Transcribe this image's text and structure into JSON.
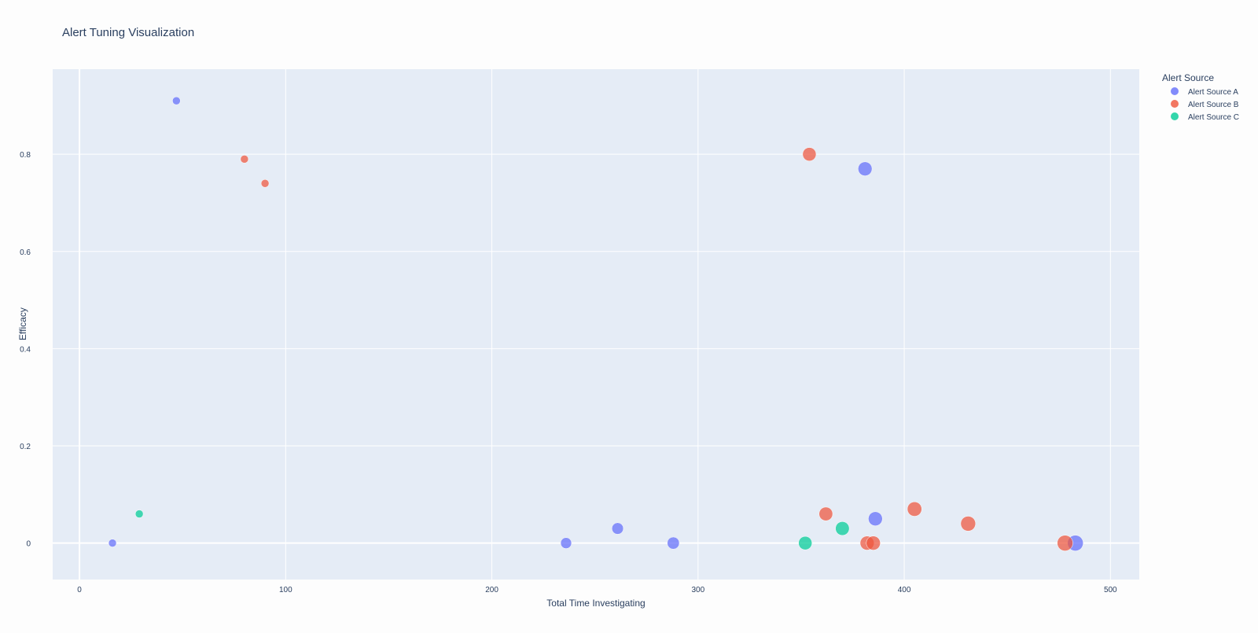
{
  "chart_data": {
    "type": "scatter",
    "title": "Alert Tuning Visualization",
    "xlabel": "Total Time Investigating",
    "ylabel": "Efficacy",
    "xlim": [
      -13,
      514
    ],
    "ylim": [
      -0.075,
      0.975
    ],
    "x_ticks": [
      0,
      100,
      200,
      300,
      400,
      500
    ],
    "x_tick_labels": [
      "0",
      "100",
      "200",
      "300",
      "400",
      "500"
    ],
    "y_ticks": [
      0,
      0.2,
      0.4,
      0.6,
      0.8
    ],
    "y_tick_labels": [
      "0",
      "0.2",
      "0.4",
      "0.6",
      "0.8"
    ],
    "grid": true,
    "legend": {
      "title": "Alert Source",
      "placement": "right-top"
    },
    "marker_size_encodes": "Total Time Investigating",
    "series": [
      {
        "name": "Alert Source A",
        "color": "#636efa",
        "points": [
          {
            "x": 16,
            "y": 0.0
          },
          {
            "x": 47,
            "y": 0.91
          },
          {
            "x": 236,
            "y": 0.0
          },
          {
            "x": 261,
            "y": 0.03
          },
          {
            "x": 288,
            "y": 0.0
          },
          {
            "x": 381,
            "y": 0.77
          },
          {
            "x": 386,
            "y": 0.05
          },
          {
            "x": 483,
            "y": 0.0
          }
        ]
      },
      {
        "name": "Alert Source B",
        "color": "#EF553B",
        "points": [
          {
            "x": 80,
            "y": 0.79
          },
          {
            "x": 90,
            "y": 0.74
          },
          {
            "x": 354,
            "y": 0.8
          },
          {
            "x": 362,
            "y": 0.06
          },
          {
            "x": 382,
            "y": 0.0
          },
          {
            "x": 385,
            "y": 0.0
          },
          {
            "x": 405,
            "y": 0.07
          },
          {
            "x": 431,
            "y": 0.04
          },
          {
            "x": 478,
            "y": 0.0
          }
        ]
      },
      {
        "name": "Alert Source C",
        "color": "#00cc96",
        "points": [
          {
            "x": 29,
            "y": 0.06
          },
          {
            "x": 352,
            "y": 0.0
          },
          {
            "x": 370,
            "y": 0.03
          }
        ]
      }
    ]
  }
}
